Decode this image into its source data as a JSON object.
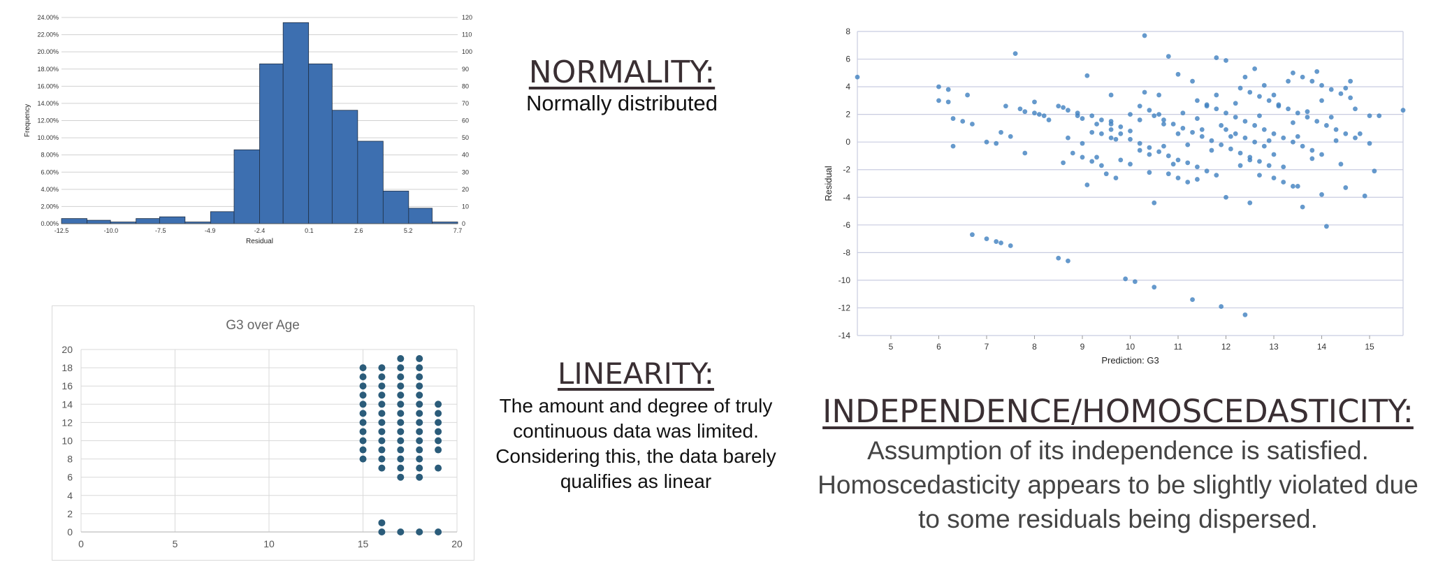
{
  "texts": {
    "normality_title": "NORMALITY:",
    "normality_body": "Normally distributed",
    "linearity_title": "LINEARITY:",
    "linearity_body": "The amount and degree of truly continuous data was limited. Considering this, the data barely qualifies as linear",
    "independence_title": "INDEPENDENCE/HOMOSCEDASTICITY:",
    "independence_body": "Assumption of its independence is satisfied. Homoscedasticity appears to be slightly violated due to some residuals being dispersed."
  },
  "chart_data": [
    {
      "type": "bar",
      "title": "",
      "xlabel": "Residual",
      "ylabel": "Frequency",
      "x_tick_labels": [
        "-12.5",
        "-10.0",
        "-7.5",
        "-4.9",
        "-2.4",
        "0.1",
        "2.6",
        "5.2",
        "7.7"
      ],
      "bin_edges": [
        -12.5,
        -11.2,
        -10.0,
        -8.7,
        -7.5,
        -6.2,
        -4.9,
        -3.7,
        -2.4,
        -1.2,
        0.1,
        1.3,
        2.6,
        3.9,
        5.2,
        6.4,
        7.7
      ],
      "frequencies_percent": [
        0.6,
        0.4,
        0.2,
        0.6,
        0.8,
        0.2,
        1.4,
        8.6,
        18.6,
        23.4,
        18.6,
        13.2,
        9.6,
        3.8,
        1.8,
        0.2
      ],
      "ylim_left_percent": [
        0,
        24
      ],
      "ylim_right_count": [
        0,
        120
      ],
      "y_left_ticks": [
        "0.00%",
        "2.00%",
        "4.00%",
        "6.00%",
        "8.00%",
        "10.00%",
        "12.00%",
        "14.00%",
        "16.00%",
        "18.00%",
        "20.00%",
        "22.00%",
        "24.00%"
      ],
      "y_right_ticks": [
        "0",
        "10",
        "20",
        "30",
        "40",
        "50",
        "60",
        "70",
        "80",
        "90",
        "100",
        "110",
        "120"
      ],
      "bar_color": "#3d6fb0",
      "grid": true
    },
    {
      "type": "scatter",
      "title": "",
      "xlabel": "Prediction: G3",
      "ylabel": "Residual",
      "xlim": [
        4.3,
        15.7
      ],
      "ylim": [
        -14,
        8
      ],
      "x_ticks": [
        5,
        6,
        7,
        8,
        9,
        10,
        11,
        12,
        13,
        14,
        15
      ],
      "y_ticks": [
        -14,
        -12,
        -10,
        -8,
        -6,
        -4,
        -2,
        0,
        2,
        4,
        6,
        8
      ],
      "point_color": "#3f7fbf",
      "grid": true,
      "points": [
        [
          4.3,
          4.7
        ],
        [
          6.0,
          4.0
        ],
        [
          6.0,
          3.0
        ],
        [
          6.2,
          3.8
        ],
        [
          6.2,
          2.9
        ],
        [
          6.3,
          1.7
        ],
        [
          6.3,
          -0.3
        ],
        [
          6.5,
          1.5
        ],
        [
          6.6,
          3.4
        ],
        [
          6.7,
          1.3
        ],
        [
          6.7,
          -6.7
        ],
        [
          7.0,
          0.0
        ],
        [
          7.0,
          -7.0
        ],
        [
          7.2,
          -0.1
        ],
        [
          7.2,
          -7.2
        ],
        [
          7.3,
          -7.3
        ],
        [
          7.3,
          0.7
        ],
        [
          7.4,
          2.6
        ],
        [
          7.5,
          -7.5
        ],
        [
          7.5,
          0.4
        ],
        [
          7.6,
          6.4
        ],
        [
          7.7,
          2.4
        ],
        [
          7.8,
          2.2
        ],
        [
          7.8,
          -0.8
        ],
        [
          8.0,
          2.1
        ],
        [
          8.0,
          2.9
        ],
        [
          8.1,
          2.0
        ],
        [
          8.2,
          1.9
        ],
        [
          8.3,
          1.6
        ],
        [
          8.5,
          2.6
        ],
        [
          8.5,
          -8.4
        ],
        [
          8.6,
          2.5
        ],
        [
          8.6,
          -1.5
        ],
        [
          8.7,
          2.3
        ],
        [
          8.7,
          0.3
        ],
        [
          8.7,
          -8.6
        ],
        [
          8.9,
          2.1
        ],
        [
          8.9,
          1.9
        ],
        [
          9.0,
          1.7
        ],
        [
          9.0,
          -0.1
        ],
        [
          9.1,
          4.8
        ],
        [
          9.1,
          -3.1
        ],
        [
          9.2,
          0.7
        ],
        [
          9.3,
          1.3
        ],
        [
          9.3,
          -1.1
        ],
        [
          9.4,
          0.6
        ],
        [
          9.5,
          -2.3
        ],
        [
          9.6,
          3.4
        ],
        [
          9.6,
          1.5
        ],
        [
          9.6,
          0.3
        ],
        [
          9.7,
          -2.6
        ],
        [
          9.7,
          0.2
        ],
        [
          9.8,
          1.1
        ],
        [
          9.8,
          -1.3
        ],
        [
          9.9,
          -9.9
        ],
        [
          10.0,
          2.0
        ],
        [
          10.0,
          0.8
        ],
        [
          10.0,
          -1.6
        ],
        [
          10.1,
          -10.1
        ],
        [
          10.2,
          1.6
        ],
        [
          10.2,
          -0.6
        ],
        [
          10.3,
          7.7
        ],
        [
          10.3,
          3.6
        ],
        [
          10.4,
          -0.9
        ],
        [
          10.4,
          -2.2
        ],
        [
          10.5,
          -10.5
        ],
        [
          10.5,
          -4.4
        ],
        [
          10.6,
          3.4
        ],
        [
          10.7,
          1.3
        ],
        [
          10.7,
          -0.3
        ],
        [
          10.8,
          6.2
        ],
        [
          10.9,
          -1.6
        ],
        [
          11.0,
          4.9
        ],
        [
          11.0,
          0.6
        ],
        [
          11.1,
          2.1
        ],
        [
          11.2,
          -0.2
        ],
        [
          11.3,
          -11.4
        ],
        [
          11.3,
          4.4
        ],
        [
          11.4,
          1.7
        ],
        [
          11.4,
          -2.7
        ],
        [
          11.5,
          0.9
        ],
        [
          11.6,
          2.6
        ],
        [
          11.7,
          -0.6
        ],
        [
          11.8,
          6.1
        ],
        [
          11.8,
          3.4
        ],
        [
          11.9,
          -11.9
        ],
        [
          11.9,
          1.2
        ],
        [
          12.0,
          -4.0
        ],
        [
          12.0,
          5.9
        ],
        [
          12.1,
          0.4
        ],
        [
          12.2,
          2.8
        ],
        [
          12.3,
          -1.7
        ],
        [
          12.4,
          4.7
        ],
        [
          12.4,
          -12.5
        ],
        [
          12.5,
          -4.4
        ],
        [
          12.5,
          -1.3
        ],
        [
          12.6,
          5.3
        ],
        [
          12.7,
          1.9
        ],
        [
          12.7,
          -2.4
        ],
        [
          12.8,
          4.1
        ],
        [
          12.9,
          0.1
        ],
        [
          13.0,
          3.4
        ],
        [
          13.0,
          -0.9
        ],
        [
          13.1,
          2.6
        ],
        [
          13.2,
          -1.8
        ],
        [
          13.3,
          4.4
        ],
        [
          13.4,
          1.4
        ],
        [
          13.5,
          -3.2
        ],
        [
          13.5,
          0.4
        ],
        [
          13.6,
          -4.7
        ],
        [
          13.7,
          2.2
        ],
        [
          13.8,
          -1.2
        ],
        [
          13.9,
          5.1
        ],
        [
          14.0,
          -3.8
        ],
        [
          14.0,
          3.0
        ],
        [
          14.1,
          -6.1
        ],
        [
          14.2,
          1.8
        ],
        [
          14.3,
          0.1
        ],
        [
          14.4,
          -1.6
        ],
        [
          14.5,
          3.9
        ],
        [
          14.5,
          -3.3
        ],
        [
          14.6,
          4.4
        ],
        [
          14.7,
          2.4
        ],
        [
          14.8,
          0.6
        ],
        [
          14.9,
          -3.9
        ],
        [
          15.0,
          1.9
        ],
        [
          15.0,
          -0.1
        ],
        [
          15.1,
          -2.1
        ],
        [
          15.2,
          1.9
        ],
        [
          15.7,
          2.3
        ],
        [
          9.6,
          0.9
        ],
        [
          9.8,
          0.6
        ],
        [
          10.0,
          0.2
        ],
        [
          10.2,
          -0.1
        ],
        [
          10.4,
          -0.4
        ],
        [
          10.6,
          -0.7
        ],
        [
          10.8,
          -1.0
        ],
        [
          11.0,
          -1.3
        ],
        [
          11.2,
          -1.5
        ],
        [
          11.4,
          -1.8
        ],
        [
          11.6,
          -2.1
        ],
        [
          11.8,
          -2.4
        ],
        [
          10.5,
          1.9
        ],
        [
          10.7,
          1.6
        ],
        [
          10.9,
          1.3
        ],
        [
          11.1,
          1.0
        ],
        [
          11.3,
          0.7
        ],
        [
          11.5,
          0.4
        ],
        [
          11.7,
          0.1
        ],
        [
          11.9,
          -0.2
        ],
        [
          12.1,
          -0.5
        ],
        [
          12.3,
          -0.8
        ],
        [
          12.5,
          -1.1
        ],
        [
          12.7,
          -1.4
        ],
        [
          12.9,
          -1.7
        ],
        [
          11.4,
          3.0
        ],
        [
          11.6,
          2.7
        ],
        [
          11.8,
          2.4
        ],
        [
          12.0,
          2.1
        ],
        [
          12.2,
          1.8
        ],
        [
          12.4,
          1.5
        ],
        [
          12.6,
          1.2
        ],
        [
          12.8,
          0.9
        ],
        [
          13.0,
          0.6
        ],
        [
          13.2,
          0.3
        ],
        [
          13.4,
          0.0
        ],
        [
          13.6,
          -0.3
        ],
        [
          13.8,
          -0.6
        ],
        [
          14.0,
          -0.9
        ],
        [
          12.3,
          3.9
        ],
        [
          12.5,
          3.6
        ],
        [
          12.7,
          3.3
        ],
        [
          12.9,
          3.0
        ],
        [
          13.1,
          2.7
        ],
        [
          13.3,
          2.4
        ],
        [
          13.5,
          2.1
        ],
        [
          13.7,
          1.8
        ],
        [
          13.9,
          1.5
        ],
        [
          14.1,
          1.2
        ],
        [
          14.3,
          0.9
        ],
        [
          14.5,
          0.6
        ],
        [
          14.7,
          0.3
        ],
        [
          13.4,
          5.0
        ],
        [
          13.6,
          4.7
        ],
        [
          13.8,
          4.4
        ],
        [
          14.0,
          4.1
        ],
        [
          14.2,
          3.8
        ],
        [
          14.4,
          3.5
        ],
        [
          14.6,
          3.2
        ],
        [
          9.2,
          1.9
        ],
        [
          9.4,
          1.6
        ],
        [
          9.6,
          1.3
        ],
        [
          8.8,
          -0.8
        ],
        [
          9.0,
          -1.1
        ],
        [
          9.2,
          -1.4
        ],
        [
          9.4,
          -1.7
        ],
        [
          10.2,
          2.6
        ],
        [
          10.4,
          2.3
        ],
        [
          10.6,
          2.0
        ],
        [
          10.8,
          -2.3
        ],
        [
          11.0,
          -2.6
        ],
        [
          11.2,
          -2.9
        ],
        [
          12.0,
          0.9
        ],
        [
          12.2,
          0.6
        ],
        [
          12.4,
          0.3
        ],
        [
          12.6,
          0.0
        ],
        [
          12.8,
          -0.3
        ],
        [
          13.0,
          -2.6
        ],
        [
          13.2,
          -2.9
        ],
        [
          13.4,
          -3.2
        ]
      ]
    },
    {
      "type": "scatter",
      "title": "G3 over Age",
      "xlabel": "",
      "ylabel": "",
      "xlim": [
        0,
        20
      ],
      "ylim": [
        0,
        20
      ],
      "x_ticks": [
        0,
        5,
        10,
        15,
        20
      ],
      "y_ticks": [
        0,
        2,
        4,
        6,
        8,
        10,
        12,
        14,
        16,
        18,
        20
      ],
      "point_color": "#2b5c7a",
      "grid": true,
      "points": [
        [
          15,
          8
        ],
        [
          15,
          9
        ],
        [
          15,
          10
        ],
        [
          15,
          11
        ],
        [
          15,
          12
        ],
        [
          15,
          13
        ],
        [
          15,
          14
        ],
        [
          15,
          15
        ],
        [
          15,
          16
        ],
        [
          15,
          17
        ],
        [
          15,
          18
        ],
        [
          16,
          0
        ],
        [
          16,
          1
        ],
        [
          16,
          7
        ],
        [
          16,
          8
        ],
        [
          16,
          9
        ],
        [
          16,
          10
        ],
        [
          16,
          11
        ],
        [
          16,
          12
        ],
        [
          16,
          13
        ],
        [
          16,
          14
        ],
        [
          16,
          15
        ],
        [
          16,
          16
        ],
        [
          16,
          17
        ],
        [
          16,
          18
        ],
        [
          17,
          0
        ],
        [
          17,
          6
        ],
        [
          17,
          7
        ],
        [
          17,
          8
        ],
        [
          17,
          9
        ],
        [
          17,
          10
        ],
        [
          17,
          11
        ],
        [
          17,
          12
        ],
        [
          17,
          13
        ],
        [
          17,
          14
        ],
        [
          17,
          15
        ],
        [
          17,
          16
        ],
        [
          17,
          17
        ],
        [
          17,
          18
        ],
        [
          17,
          19
        ],
        [
          18,
          0
        ],
        [
          18,
          6
        ],
        [
          18,
          7
        ],
        [
          18,
          8
        ],
        [
          18,
          9
        ],
        [
          18,
          10
        ],
        [
          18,
          11
        ],
        [
          18,
          12
        ],
        [
          18,
          13
        ],
        [
          18,
          14
        ],
        [
          18,
          15
        ],
        [
          18,
          16
        ],
        [
          18,
          17
        ],
        [
          18,
          18
        ],
        [
          18,
          19
        ],
        [
          19,
          0
        ],
        [
          19,
          7
        ],
        [
          19,
          9
        ],
        [
          19,
          10
        ],
        [
          19,
          11
        ],
        [
          19,
          12
        ],
        [
          19,
          13
        ],
        [
          19,
          14
        ]
      ]
    }
  ]
}
